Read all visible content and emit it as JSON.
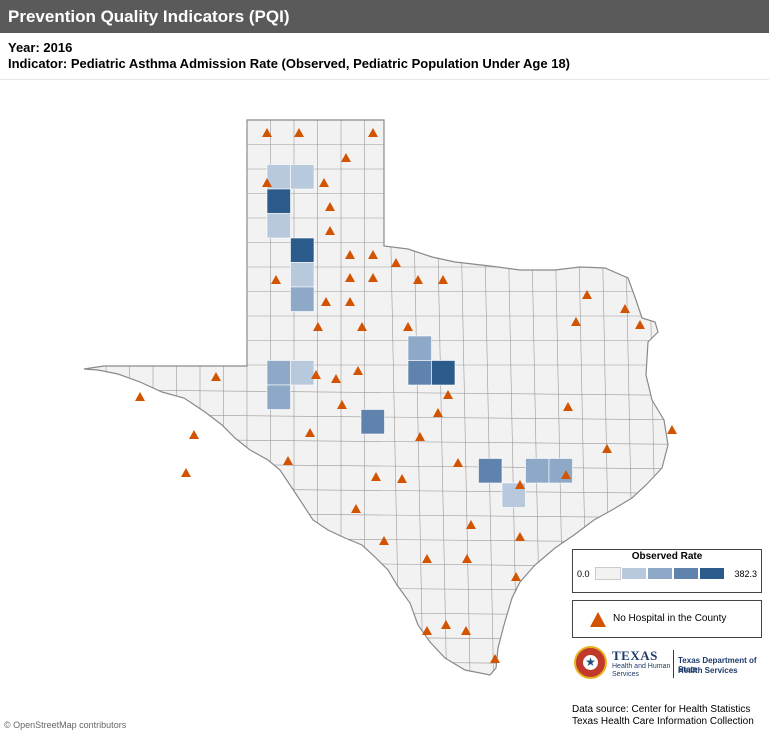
{
  "header": {
    "title": "Prevention Quality Indicators (PQI)"
  },
  "subtitle": {
    "year": "Year: 2016",
    "indicator": "Indicator: Pediatric Asthma Admission Rate (Observed,  Pediatric Population Under Age 18)"
  },
  "legend": {
    "title": "Observed Rate",
    "min_label": "0.0",
    "max_label": "382.3",
    "colors": [
      "#f2f2f2",
      "#b9c9dd",
      "#8ea9c8",
      "#5f83ad",
      "#2b5b8a"
    ]
  },
  "hospital_legend": {
    "label": "No Hospital in the County",
    "marker_color": "#d35400"
  },
  "logos": {
    "texas": "TEXAS",
    "hhs_line1": "Health and Human",
    "hhs_line2": "Services",
    "dshs_line1": "Texas Department of State",
    "dshs_line2": "Health Services"
  },
  "source": {
    "line1": "Data source: Center for Health Statistics",
    "line2": "Texas Health Care Information Collection"
  },
  "attribution": "© OpenStreetMap contributors",
  "map": {
    "base_color": "#f2f2f2",
    "border_color": "#9a9a9a",
    "shaded_counties": [
      {
        "level": 2,
        "col": 0,
        "row": 1
      },
      {
        "level": 2,
        "col": 1,
        "row": 1
      },
      {
        "level": 5,
        "col": 0,
        "row": 2
      },
      {
        "level": 2,
        "col": 0,
        "row": 3
      },
      {
        "level": 5,
        "col": 1,
        "row": 4
      },
      {
        "level": 2,
        "col": 1,
        "row": 5
      },
      {
        "level": 3,
        "col": 1,
        "row": 6
      },
      {
        "level": 3,
        "col": 0,
        "row": 9
      },
      {
        "level": 2,
        "col": 1,
        "row": 9
      },
      {
        "level": 3,
        "col": 0,
        "row": 10
      },
      {
        "level": 3,
        "col": 6,
        "row": 8
      },
      {
        "level": 4,
        "col": 6,
        "row": 9
      },
      {
        "level": 5,
        "col": 7,
        "row": 9
      },
      {
        "level": 4,
        "col": 4,
        "row": 11
      },
      {
        "level": 4,
        "col": 9,
        "row": 13
      },
      {
        "level": 3,
        "col": 11,
        "row": 13
      },
      {
        "level": 3,
        "col": 12,
        "row": 13
      },
      {
        "level": 2,
        "col": 10,
        "row": 14
      }
    ]
  }
}
